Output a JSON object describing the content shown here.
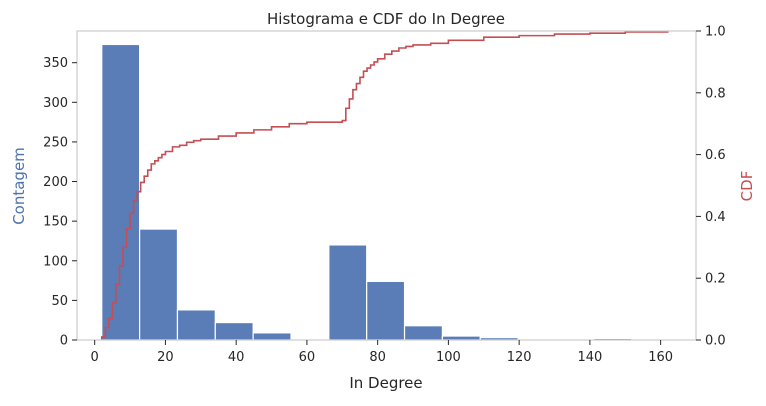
{
  "chart_data": {
    "type": "bar",
    "title": "Histograma e CDF do In Degree",
    "xlabel": "In Degree",
    "ylabel": "Contagem",
    "y2label": "CDF",
    "xlim": [
      -5,
      170
    ],
    "ylim": [
      0,
      390
    ],
    "y2lim": [
      0,
      1.0
    ],
    "x_ticks": [
      0,
      20,
      40,
      60,
      80,
      100,
      120,
      140,
      160
    ],
    "y_ticks": [
      0,
      50,
      100,
      150,
      200,
      250,
      300,
      350
    ],
    "y2_ticks": [
      0.0,
      0.2,
      0.4,
      0.6,
      0.8,
      1.0
    ],
    "grid": false,
    "colors": {
      "bars": "#5a7db8",
      "cdf": "#c44e52",
      "left_label": "#4c72b0",
      "right_label": "#c44e52"
    },
    "histogram": {
      "bin_edges": [
        2,
        12.7,
        23.4,
        34.1,
        44.8,
        55.5,
        66.2,
        76.9,
        87.6,
        98.3,
        109.0,
        119.7,
        130.4,
        141.1,
        151.8,
        162.5
      ],
      "counts": [
        373,
        140,
        38,
        22,
        9,
        0,
        120,
        74,
        18,
        5,
        3,
        0,
        0,
        2,
        0
      ]
    },
    "cdf": {
      "x": [
        2,
        3,
        4,
        5,
        6,
        7,
        8,
        9,
        10,
        11,
        12,
        13,
        14,
        15,
        16,
        17,
        18,
        19,
        20,
        22,
        24,
        26,
        28,
        30,
        35,
        40,
        45,
        50,
        55,
        60,
        65,
        70,
        71,
        72,
        73,
        74,
        75,
        76,
        77,
        78,
        79,
        80,
        82,
        84,
        86,
        88,
        90,
        95,
        100,
        110,
        120,
        130,
        140,
        150,
        162
      ],
      "y": [
        0.01,
        0.04,
        0.07,
        0.12,
        0.18,
        0.24,
        0.3,
        0.36,
        0.41,
        0.45,
        0.48,
        0.51,
        0.53,
        0.55,
        0.57,
        0.58,
        0.59,
        0.6,
        0.61,
        0.625,
        0.63,
        0.64,
        0.645,
        0.65,
        0.66,
        0.67,
        0.68,
        0.69,
        0.7,
        0.705,
        0.705,
        0.71,
        0.75,
        0.78,
        0.81,
        0.83,
        0.85,
        0.87,
        0.88,
        0.89,
        0.9,
        0.91,
        0.925,
        0.935,
        0.945,
        0.95,
        0.955,
        0.96,
        0.97,
        0.98,
        0.985,
        0.99,
        0.993,
        0.997,
        1.0
      ]
    }
  }
}
